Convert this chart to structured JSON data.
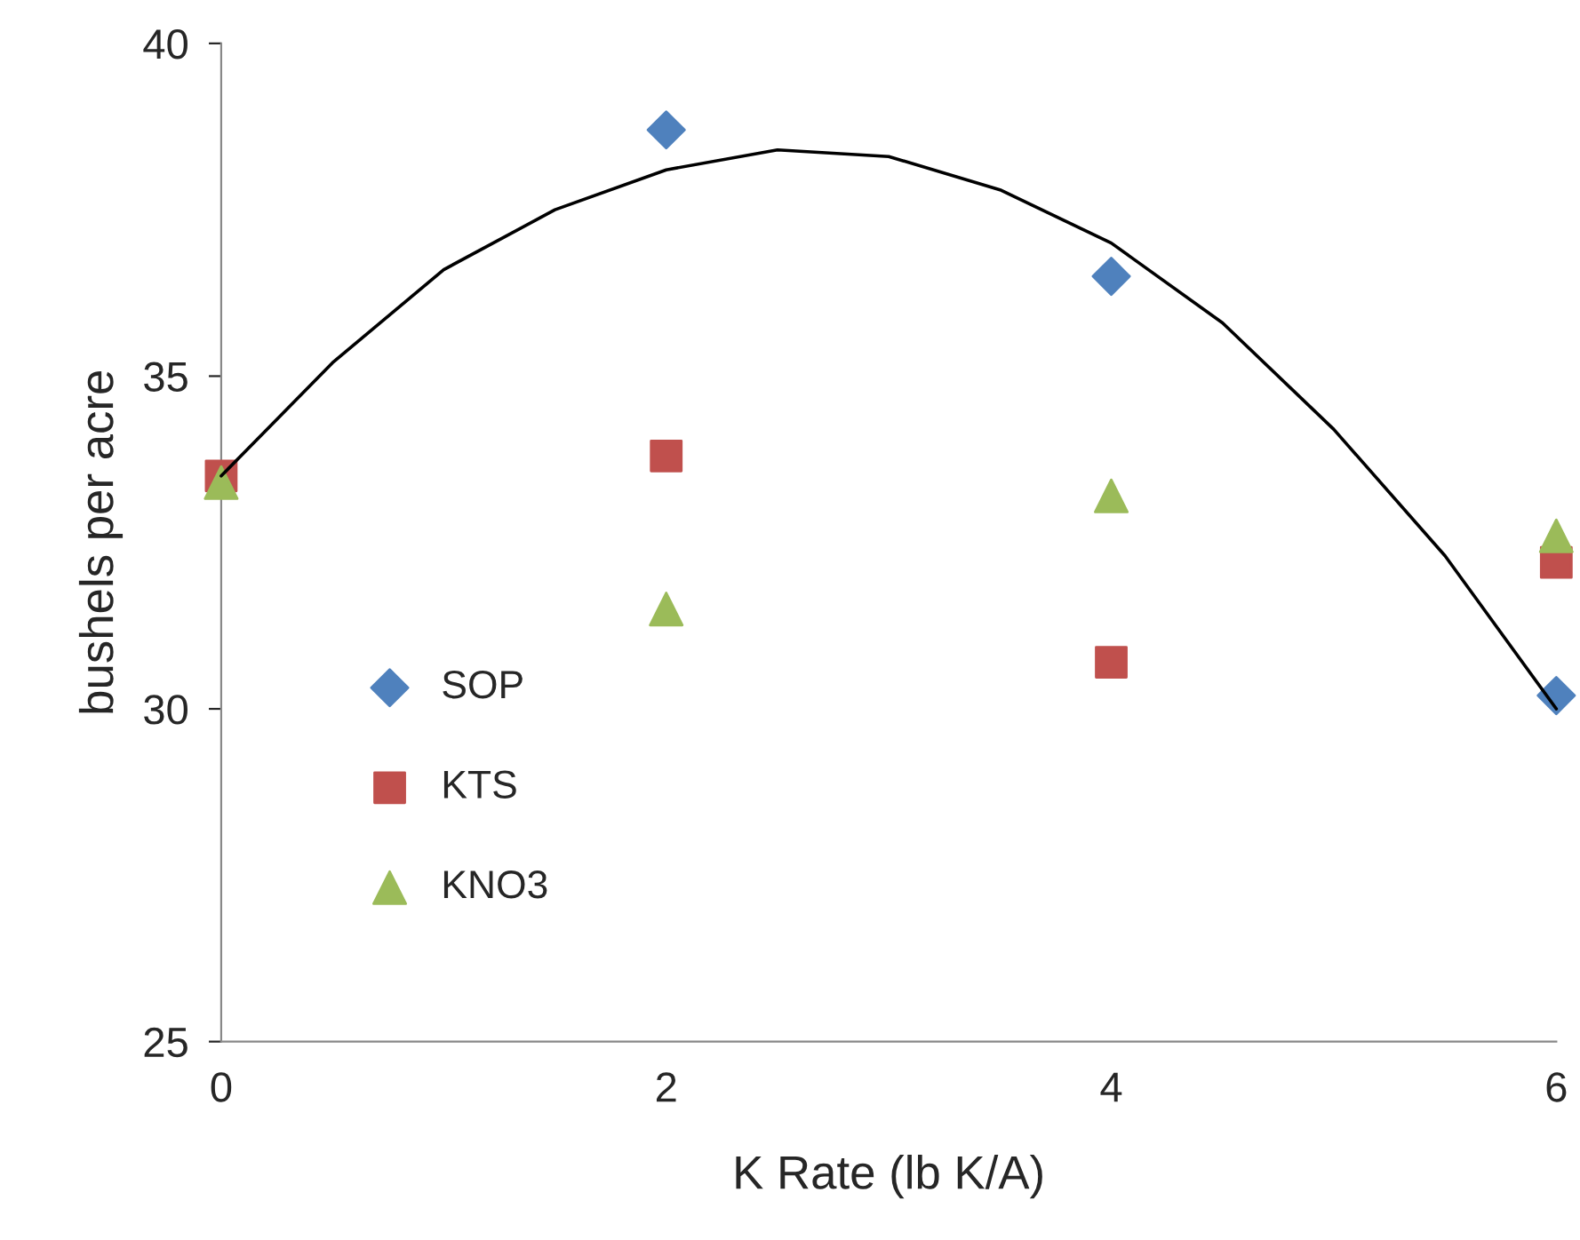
{
  "chart_data": {
    "type": "scatter",
    "xlabel": "K Rate (lb K/A)",
    "ylabel": "bushels per acre",
    "x": [
      0,
      2,
      4,
      6
    ],
    "xlim": [
      0,
      6
    ],
    "xticks": [
      0,
      2,
      4,
      6
    ],
    "ylim": [
      25,
      40
    ],
    "yticks": [
      25,
      30,
      35,
      40
    ],
    "grid": false,
    "legend": "bottom left",
    "series": [
      {
        "name": "SOP",
        "color": "#4f81bd",
        "marker": "diamond",
        "values": [
          null,
          38.7,
          36.5,
          30.2
        ]
      },
      {
        "name": "KTS",
        "color": "#c0504d",
        "marker": "square",
        "values": [
          33.5,
          33.8,
          30.7,
          32.2
        ]
      },
      {
        "name": "KNO3",
        "color": "#9bbb59",
        "marker": "triangle",
        "values": [
          33.4,
          31.5,
          33.2,
          32.6
        ]
      },
      {
        "type": "line",
        "color": "#000000",
        "marker": "none",
        "line_style": "solid",
        "x": [
          0,
          0.5,
          1,
          1.5,
          2,
          2.5,
          3,
          3.5,
          4,
          4.5,
          5,
          5.5,
          6
        ],
        "values": [
          33.5,
          35.2,
          36.6,
          37.5,
          38.1,
          38.4,
          38.3,
          37.8,
          37.0,
          35.8,
          34.2,
          32.3,
          30.0
        ]
      }
    ]
  }
}
